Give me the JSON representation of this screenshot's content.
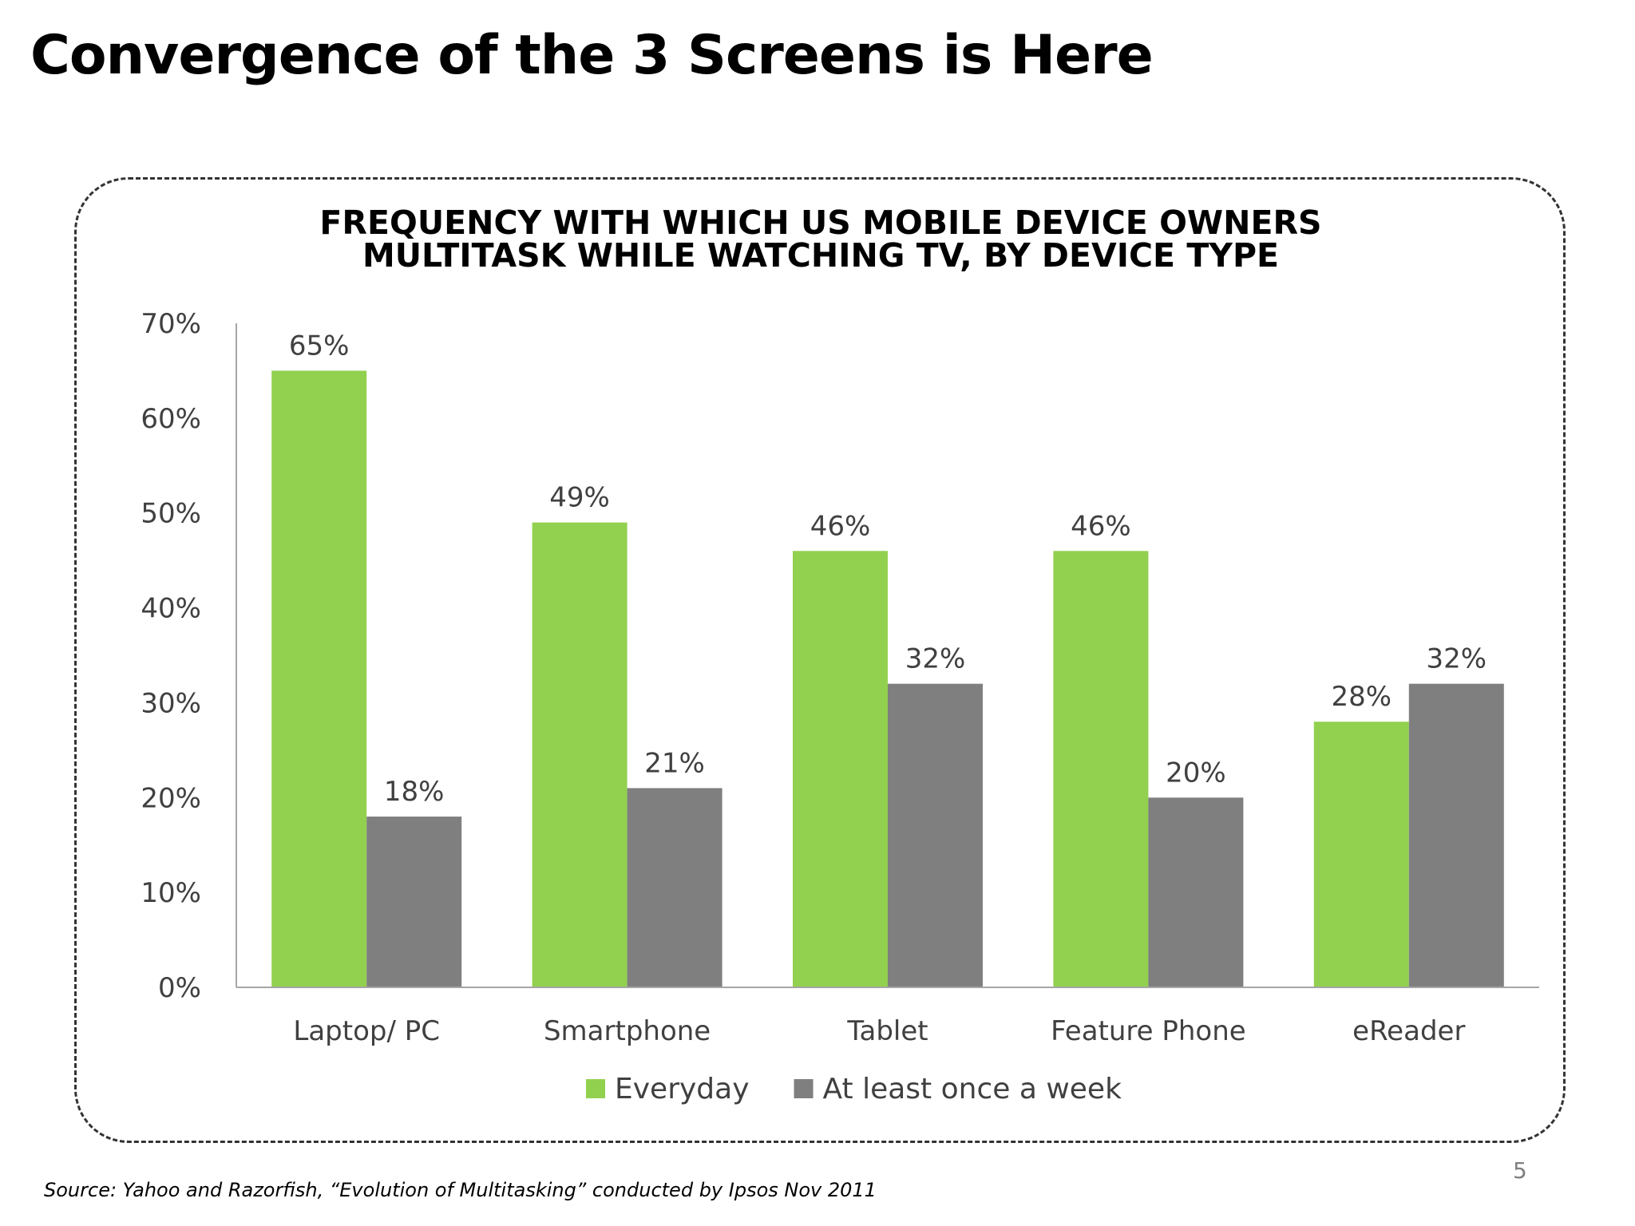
{
  "slide": {
    "title": "Convergence of the 3 Screens is Here",
    "source": "Source: Yahoo and Razorfish, “Evolution of Multitasking” conducted by Ipsos Nov 2011",
    "page_number": "5"
  },
  "chart_data": {
    "type": "bar",
    "title_line1": "FREQUENCY WITH WHICH US MOBILE DEVICE OWNERS",
    "title_line2": "MULTITASK WHILE WATCHING TV, BY DEVICE TYPE",
    "categories": [
      "Laptop/ PC",
      "Smartphone",
      "Tablet",
      "Feature Phone",
      "eReader"
    ],
    "series": [
      {
        "name": "Everyday",
        "color": "#92d050",
        "values": [
          65,
          49,
          46,
          46,
          28
        ]
      },
      {
        "name": "At least once a week",
        "color": "#7f7f7f",
        "values": [
          18,
          21,
          32,
          20,
          32
        ]
      }
    ],
    "value_suffix": "%",
    "ylim": [
      0,
      70
    ],
    "y_ticks": [
      "0%",
      "10%",
      "20%",
      "30%",
      "40%",
      "50%",
      "60%",
      "70%"
    ],
    "grid": false,
    "legend_position": "bottom"
  }
}
